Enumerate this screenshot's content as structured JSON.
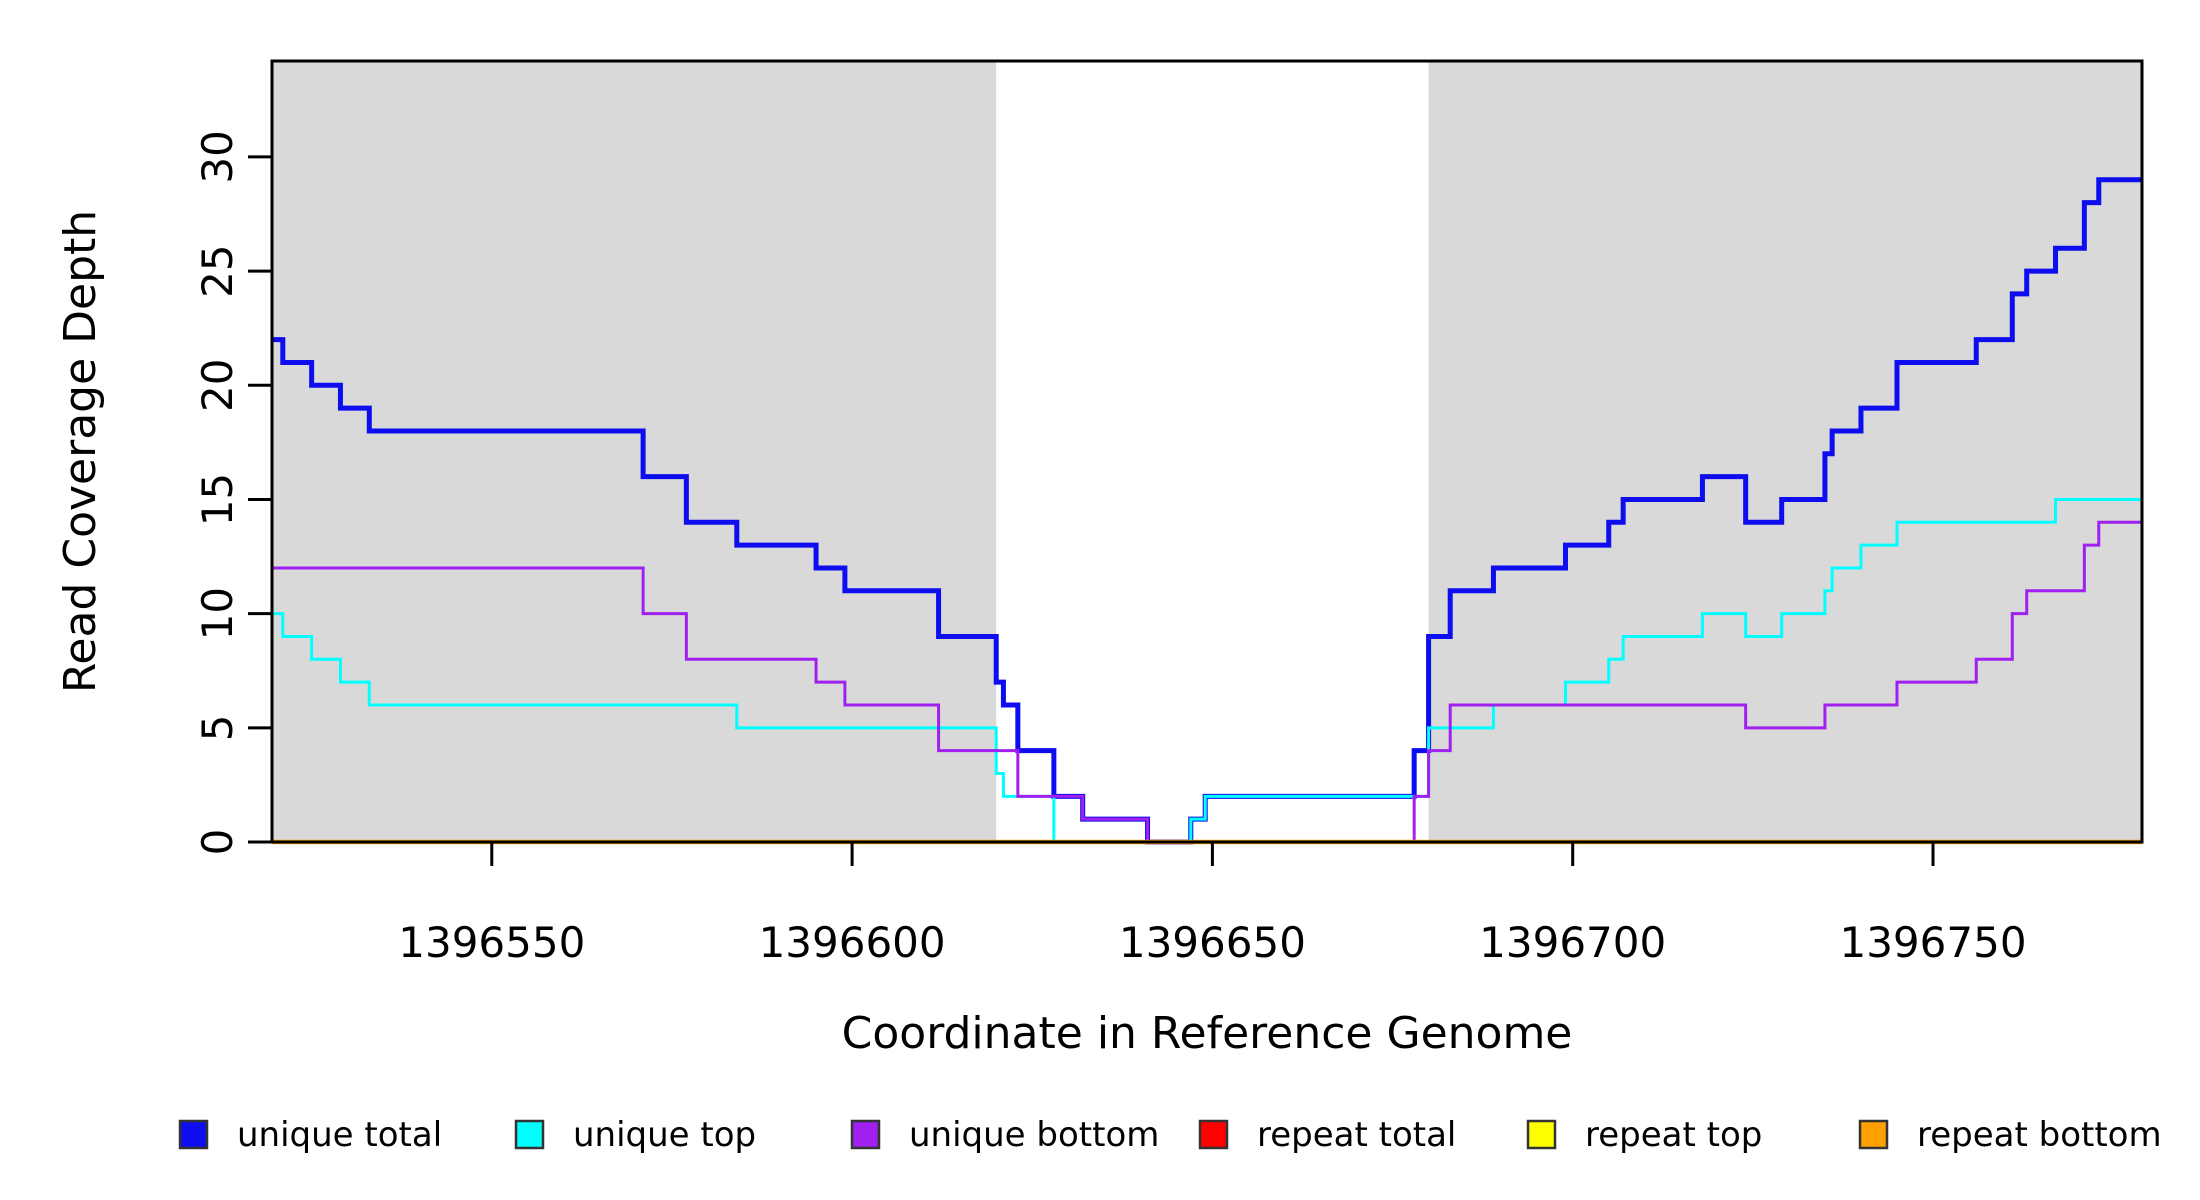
{
  "figure": {
    "x_axis_title": "Coordinate in Reference Genome",
    "y_axis_title": "Read Coverage Depth"
  },
  "legend": {
    "items": [
      {
        "label": "unique total",
        "color": "#0d0df0"
      },
      {
        "label": "unique top",
        "color": "#00ffff"
      },
      {
        "label": "unique bottom",
        "color": "#a020f0"
      },
      {
        "label": "repeat total",
        "color": "#ff0000"
      },
      {
        "label": "repeat top",
        "color": "#ffff00"
      },
      {
        "label": "repeat bottom",
        "color": "#ff9f00"
      }
    ]
  },
  "chart_data": {
    "type": "line",
    "subtype": "step-after",
    "title": "",
    "xlabel": "Coordinate in Reference Genome",
    "ylabel": "Read Coverage Depth",
    "xlim": [
      1396519.5,
      1396779
    ],
    "ylim": [
      0,
      34.2
    ],
    "xticks": [
      1396550,
      1396600,
      1396650,
      1396700,
      1396750
    ],
    "yticks": [
      0,
      5,
      10,
      15,
      20,
      25,
      30
    ],
    "grid": false,
    "legend_position": "bottom",
    "background_color": "#ffffff",
    "shaded_band_color": "#d9d9d9",
    "shaded_regions": [
      [
        1396519.5,
        1396620
      ],
      [
        1396680,
        1396779
      ]
    ],
    "series": [
      {
        "name": "unique total",
        "color": "#0d0df0",
        "width": 5,
        "points": [
          [
            1396519.5,
            22
          ],
          [
            1396521,
            21
          ],
          [
            1396525,
            20
          ],
          [
            1396529,
            19
          ],
          [
            1396533,
            18
          ],
          [
            1396571,
            16
          ],
          [
            1396577,
            14
          ],
          [
            1396584,
            13
          ],
          [
            1396595,
            12
          ],
          [
            1396599,
            11
          ],
          [
            1396612,
            9
          ],
          [
            1396620,
            7
          ],
          [
            1396621,
            6
          ],
          [
            1396623,
            4
          ],
          [
            1396628,
            2
          ],
          [
            1396632,
            1
          ],
          [
            1396641,
            0
          ],
          [
            1396647,
            1
          ],
          [
            1396649,
            2
          ],
          [
            1396678,
            4
          ],
          [
            1396680,
            9
          ],
          [
            1396683,
            11
          ],
          [
            1396689,
            12
          ],
          [
            1396699,
            13
          ],
          [
            1396705,
            14
          ],
          [
            1396707,
            15
          ],
          [
            1396718,
            16
          ],
          [
            1396724,
            14
          ],
          [
            1396729,
            15
          ],
          [
            1396735,
            17
          ],
          [
            1396736,
            18
          ],
          [
            1396740,
            19
          ],
          [
            1396745,
            21
          ],
          [
            1396756,
            22
          ],
          [
            1396761,
            24
          ],
          [
            1396763,
            25
          ],
          [
            1396767,
            26
          ],
          [
            1396771,
            28
          ],
          [
            1396773,
            29
          ]
        ]
      },
      {
        "name": "unique top",
        "color": "#00ffff",
        "width": 3,
        "points": [
          [
            1396519.5,
            10
          ],
          [
            1396521,
            9
          ],
          [
            1396525,
            8
          ],
          [
            1396529,
            7
          ],
          [
            1396533,
            6
          ],
          [
            1396584,
            5
          ],
          [
            1396620,
            3
          ],
          [
            1396621,
            2
          ],
          [
            1396628,
            0
          ],
          [
            1396647,
            1
          ],
          [
            1396649,
            2
          ],
          [
            1396680,
            5
          ],
          [
            1396689,
            6
          ],
          [
            1396699,
            7
          ],
          [
            1396705,
            8
          ],
          [
            1396707,
            9
          ],
          [
            1396718,
            10
          ],
          [
            1396724,
            9
          ],
          [
            1396729,
            10
          ],
          [
            1396735,
            11
          ],
          [
            1396736,
            12
          ],
          [
            1396740,
            13
          ],
          [
            1396745,
            14
          ],
          [
            1396767,
            15
          ]
        ]
      },
      {
        "name": "unique bottom",
        "color": "#a020f0",
        "width": 3,
        "points": [
          [
            1396519.5,
            12
          ],
          [
            1396571,
            10
          ],
          [
            1396577,
            8
          ],
          [
            1396595,
            7
          ],
          [
            1396599,
            6
          ],
          [
            1396612,
            4
          ],
          [
            1396623,
            2
          ],
          [
            1396632,
            1
          ],
          [
            1396641,
            0
          ],
          [
            1396678,
            2
          ],
          [
            1396680,
            4
          ],
          [
            1396683,
            6
          ],
          [
            1396724,
            5
          ],
          [
            1396735,
            6
          ],
          [
            1396745,
            7
          ],
          [
            1396756,
            8
          ],
          [
            1396761,
            10
          ],
          [
            1396763,
            11
          ],
          [
            1396771,
            13
          ],
          [
            1396773,
            14
          ]
        ]
      },
      {
        "name": "repeat total",
        "color": "#ff0000",
        "width": 3,
        "points": [
          [
            1396519.5,
            0
          ]
        ]
      },
      {
        "name": "repeat top",
        "color": "#ffff00",
        "width": 3,
        "points": [
          [
            1396519.5,
            0
          ]
        ]
      },
      {
        "name": "repeat bottom",
        "color": "#ff9f00",
        "width": 4.5,
        "points": [
          [
            1396519.5,
            0
          ]
        ]
      }
    ]
  }
}
